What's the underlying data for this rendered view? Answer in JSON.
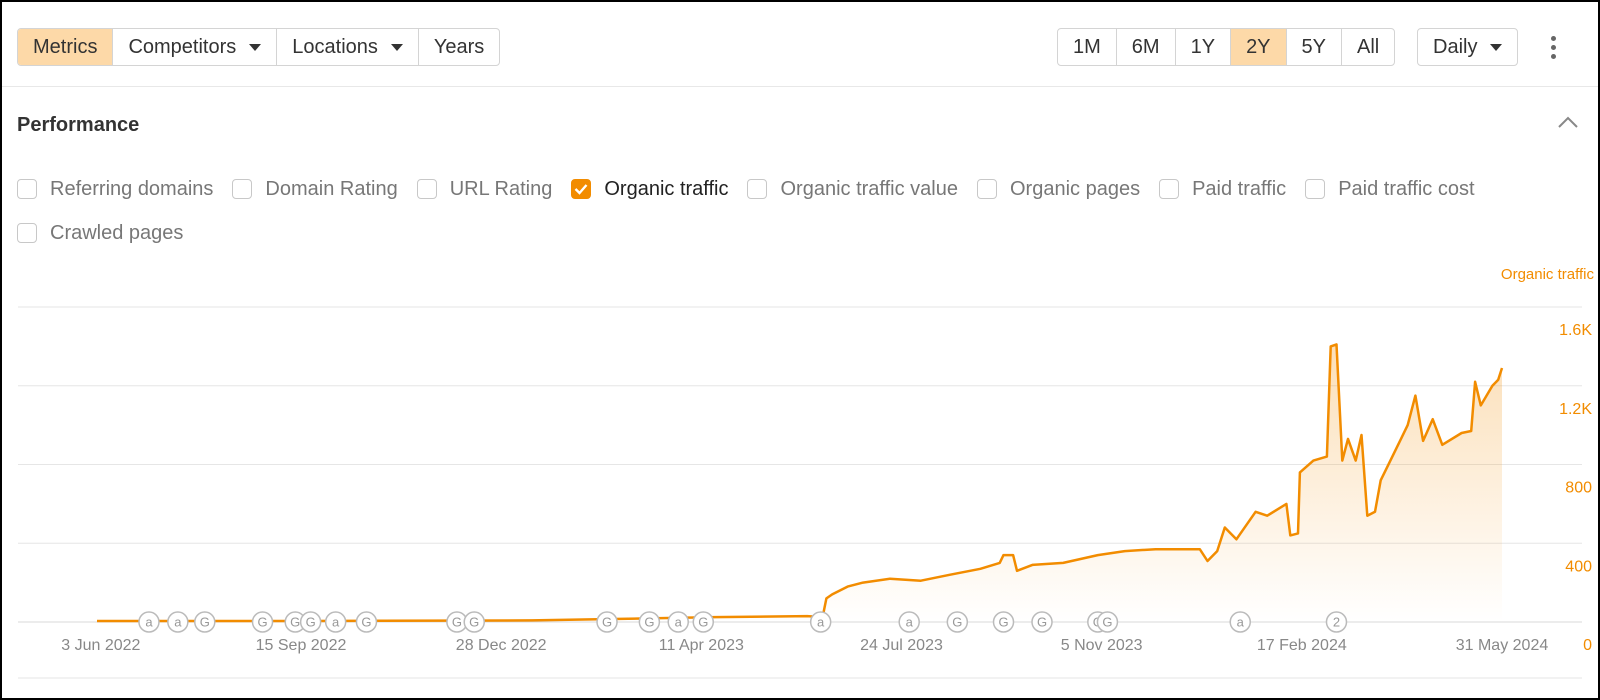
{
  "toolbar": {
    "tabs": [
      {
        "label": "Metrics",
        "active": true
      },
      {
        "label": "Competitors",
        "dropdown": true
      },
      {
        "label": "Locations",
        "dropdown": true
      },
      {
        "label": "Years"
      }
    ],
    "ranges": [
      {
        "label": "1M"
      },
      {
        "label": "6M"
      },
      {
        "label": "1Y"
      },
      {
        "label": "2Y",
        "active": true
      },
      {
        "label": "5Y"
      },
      {
        "label": "All"
      }
    ],
    "interval": {
      "label": "Daily",
      "dropdown": true
    }
  },
  "section": {
    "title": "Performance",
    "metrics": [
      {
        "label": "Referring domains",
        "checked": false
      },
      {
        "label": "Domain Rating",
        "checked": false
      },
      {
        "label": "URL Rating",
        "checked": false
      },
      {
        "label": "Organic traffic",
        "checked": true
      },
      {
        "label": "Organic traffic value",
        "checked": false
      },
      {
        "label": "Organic pages",
        "checked": false
      },
      {
        "label": "Paid traffic",
        "checked": false
      },
      {
        "label": "Paid traffic cost",
        "checked": false
      },
      {
        "label": "Crawled pages",
        "checked": false
      }
    ]
  },
  "chart_data": {
    "type": "line",
    "x": [
      "1 Jun 2022",
      "18 Sep 2022",
      "13 Jan 2023",
      "24 Feb 2023",
      "18 Apr 2023",
      "5 Jun 2023",
      "13 Jun 2023",
      "15 Jun 2023",
      "18 Jun 2023",
      "26 Jun 2023",
      "4 Jul 2023",
      "18 Jul 2023",
      "3 Aug 2023",
      "18 Aug 2023",
      "3 Sep 2023",
      "13 Sep 2023",
      "15 Sep 2023",
      "20 Sep 2023",
      "22 Sep 2023",
      "30 Sep 2023",
      "16 Oct 2023",
      "3 Nov 2023",
      "17 Nov 2023",
      "3 Dec 2023",
      "26 Dec 2023",
      "30 Dec 2023",
      "4 Jan 2024",
      "8 Jan 2024",
      "14 Jan 2024",
      "24 Jan 2024",
      "30 Jan 2024",
      "9 Feb 2024",
      "11 Feb 2024",
      "15 Feb 2024",
      "16 Feb 2024",
      "23 Feb 2024",
      "1 Mar 2024",
      "3 Mar 2024",
      "6 Mar 2024",
      "9 Mar 2024",
      "12 Mar 2024",
      "16 Mar 2024",
      "19 Mar 2024",
      "22 Mar 2024",
      "26 Mar 2024",
      "29 Mar 2024",
      "3 Apr 2024",
      "7 Apr 2024",
      "12 Apr 2024",
      "16 Apr 2024",
      "20 Apr 2024",
      "25 Apr 2024",
      "30 Apr 2024",
      "10 May 2024",
      "15 May 2024",
      "17 May 2024",
      "20 May 2024",
      "26 May 2024",
      "29 May 2024",
      "31 May 2024"
    ],
    "series": [
      {
        "name": "Organic traffic",
        "color": "#f28c00",
        "values": [
          5,
          5,
          8,
          15,
          25,
          30,
          25,
          120,
          140,
          180,
          200,
          220,
          210,
          240,
          270,
          300,
          340,
          340,
          260,
          290,
          300,
          340,
          360,
          370,
          370,
          310,
          360,
          480,
          420,
          560,
          540,
          600,
          440,
          450,
          760,
          820,
          840,
          1400,
          1410,
          820,
          930,
          820,
          950,
          540,
          560,
          720,
          820,
          900,
          1000,
          1150,
          920,
          1030,
          900,
          960,
          970,
          1220,
          1100,
          1200,
          1230,
          1290
        ]
      }
    ],
    "xlim": [
      "1 Jun 2022",
      "31 May 2024"
    ],
    "xticks": [
      "3 Jun 2022",
      "15 Sep 2022",
      "28 Dec 2022",
      "11 Apr 2023",
      "24 Jul 2023",
      "5 Nov 2023",
      "17 Feb 2024",
      "31 May 2024"
    ],
    "ylim": [
      0,
      1600
    ],
    "yticks": [
      0,
      400,
      800,
      {
        "value": 1200,
        "label": "1.2K"
      },
      {
        "value": 1600,
        "label": "1.6K"
      }
    ],
    "grid": true,
    "annotations": [
      {
        "x": "28 Jun 2022",
        "label": "a"
      },
      {
        "x": "13 Jul 2022",
        "label": "a"
      },
      {
        "x": "27 Jul 2022",
        "label": "G"
      },
      {
        "x": "26 Aug 2022",
        "label": "G"
      },
      {
        "x": "12 Sep 2022",
        "label": "G"
      },
      {
        "x": "20 Sep 2022",
        "label": "G"
      },
      {
        "x": "3 Oct 2022",
        "label": "a"
      },
      {
        "x": "19 Oct 2022",
        "label": "G"
      },
      {
        "x": "5 Dec 2022",
        "label": "G"
      },
      {
        "x": "14 Dec 2022",
        "label": "G"
      },
      {
        "x": "21 Feb 2023",
        "label": "G"
      },
      {
        "x": "15 Mar 2023",
        "label": "G"
      },
      {
        "x": "30 Mar 2023",
        "label": "a"
      },
      {
        "x": "12 Apr 2023",
        "label": "G"
      },
      {
        "x": "12 Jun 2023",
        "label": "a"
      },
      {
        "x": "28 Jul 2023",
        "label": "a"
      },
      {
        "x": "22 Aug 2023",
        "label": "G"
      },
      {
        "x": "15 Sep 2023",
        "label": "G"
      },
      {
        "x": "5 Oct 2023",
        "label": "G"
      },
      {
        "x": "3 Nov 2023",
        "label": "G"
      },
      {
        "x": "8 Nov 2023",
        "label": "G"
      },
      {
        "x": "16 Jan 2024",
        "label": "a"
      },
      {
        "x": "6 Mar 2024",
        "label": "2"
      }
    ]
  }
}
